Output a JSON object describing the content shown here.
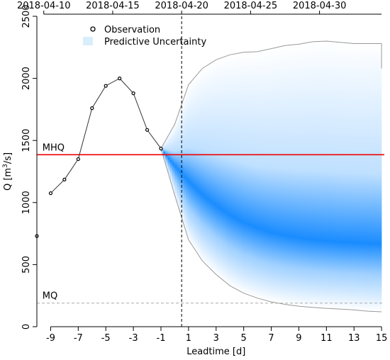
{
  "chart_data": {
    "type": "line",
    "xlabel": "Leadtime [d]",
    "ylabel": "Q [m³/s]",
    "ylabel_parts": {
      "prefix": "Q [m",
      "superscript": "3",
      "suffix": "/s]"
    },
    "xlim": [
      -10,
      15.2
    ],
    "ylim": [
      0,
      2500
    ],
    "x_ticks": [
      -9,
      -7,
      -5,
      -3,
      -1,
      1,
      3,
      5,
      7,
      9,
      11,
      13,
      15
    ],
    "y_ticks": [
      0,
      500,
      1000,
      1500,
      2000,
      2500
    ],
    "top_axis": {
      "tick_labels": [
        "2018-04-10",
        "2018-04-15",
        "2018-04-20",
        "2018-04-25",
        "2018-04-30"
      ],
      "tick_leadtimes": [
        -9.5,
        -4.5,
        0.5,
        5.5,
        10.5
      ]
    },
    "forecast_start_leadtime": 0.5,
    "series": [
      {
        "name": "Observation",
        "x": [
          -10,
          -9,
          -8,
          -7,
          -6,
          -5,
          -4,
          -3,
          -2,
          -1
        ],
        "y": [
          730,
          1075,
          1185,
          1350,
          1760,
          1940,
          2000,
          1880,
          1585,
          1435
        ]
      }
    ],
    "uncertainty": {
      "name": "Predictive Uncertainty",
      "x": [
        -1,
        0,
        1,
        2,
        3,
        4,
        5,
        6,
        7,
        8,
        9,
        10,
        11,
        12,
        13,
        14,
        15
      ],
      "median": [
        1435,
        1300,
        1175,
        1065,
        975,
        900,
        840,
        795,
        760,
        735,
        715,
        700,
        690,
        680,
        675,
        670,
        665
      ],
      "lower": [
        1435,
        1060,
        700,
        530,
        420,
        330,
        270,
        230,
        200,
        180,
        165,
        155,
        148,
        142,
        135,
        125,
        120
      ],
      "upper": [
        1435,
        1630,
        1950,
        2080,
        2150,
        2190,
        2210,
        2215,
        2240,
        2265,
        2275,
        2295,
        2300,
        2290,
        2280,
        2280,
        2280
      ]
    },
    "reference_lines": [
      {
        "label": "MHQ",
        "value": 1385,
        "color": "#ee0000",
        "style": "solid"
      },
      {
        "label": "MQ",
        "value": 190,
        "color": "#aaaaaa",
        "style": "dashed"
      }
    ],
    "legend_placement": "top-left",
    "grid": false,
    "colors": {
      "uncertainty_core": "#1a8cff",
      "uncertainty_edge": "#ffffff",
      "observation_line": "#333333",
      "envelope_line": "#999999"
    }
  }
}
